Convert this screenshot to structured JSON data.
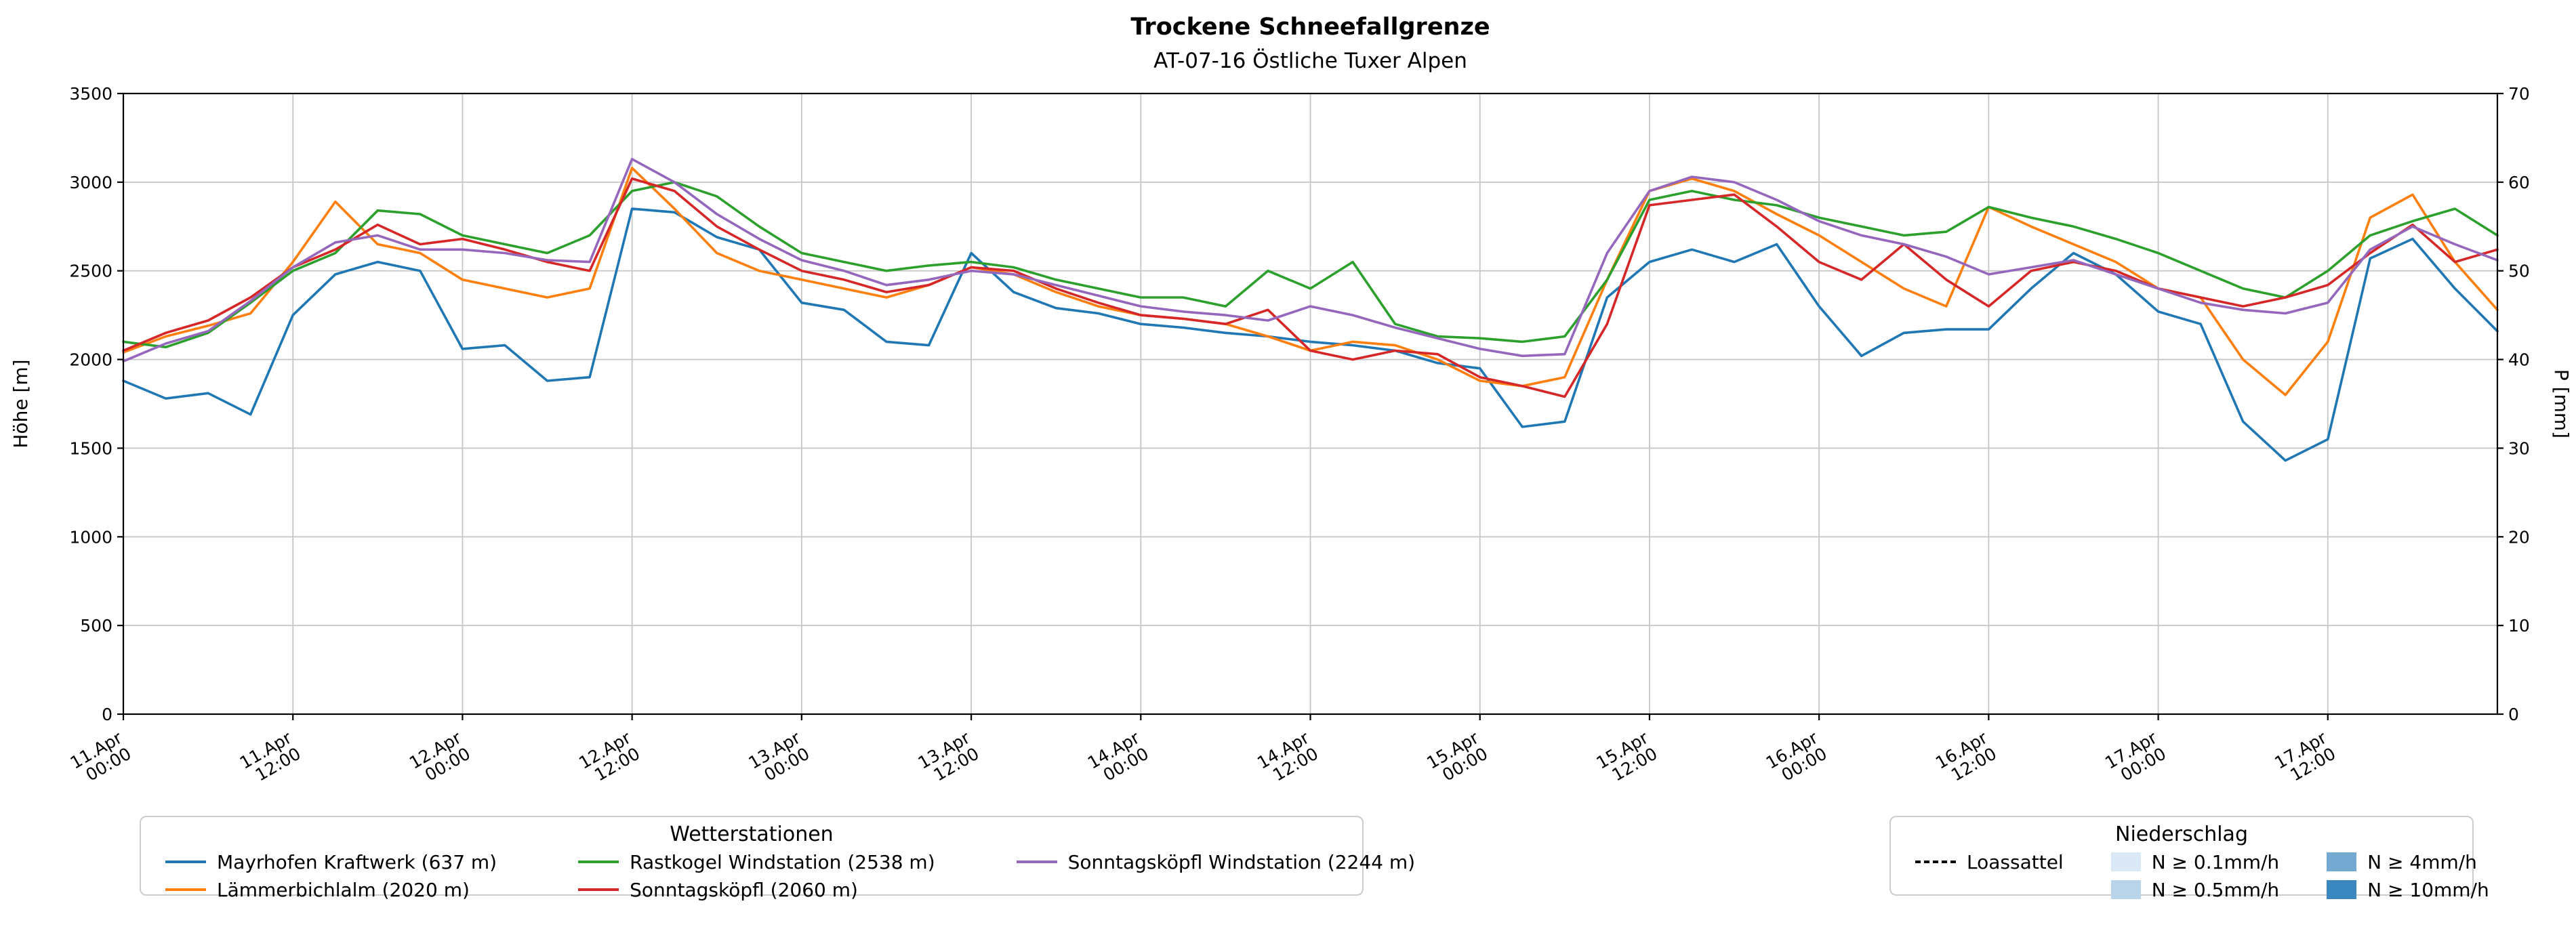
{
  "colors": {
    "grid": "#c6c6c6",
    "axis": "#000000",
    "background": "#ffffff"
  },
  "chart_data": {
    "type": "line",
    "title": "Trockene Schneefallgrenze",
    "subtitle": "AT-07-16 Östliche Tuxer Alpen",
    "ylabel_left": "Höhe [m]",
    "ylabel_right": "P [mm]",
    "ylim_left": [
      0,
      3500
    ],
    "yticks_left": [
      0,
      500,
      1000,
      1500,
      2000,
      2500,
      3000,
      3500
    ],
    "ylim_right": [
      0,
      70
    ],
    "yticks_right": [
      0,
      10,
      20,
      30,
      40,
      50,
      60,
      70
    ],
    "grid": true,
    "legend_position": "below",
    "x_unit": "hours since 11.Apr 00:00",
    "xlim": [
      0,
      168
    ],
    "x_ticks": [
      {
        "hour": 0,
        "label": [
          "11.Apr",
          "00:00"
        ]
      },
      {
        "hour": 12,
        "label": [
          "11.Apr",
          "12:00"
        ]
      },
      {
        "hour": 24,
        "label": [
          "12.Apr",
          "00:00"
        ]
      },
      {
        "hour": 36,
        "label": [
          "12.Apr",
          "12:00"
        ]
      },
      {
        "hour": 48,
        "label": [
          "13.Apr",
          "00:00"
        ]
      },
      {
        "hour": 60,
        "label": [
          "13.Apr",
          "12:00"
        ]
      },
      {
        "hour": 72,
        "label": [
          "14.Apr",
          "00:00"
        ]
      },
      {
        "hour": 84,
        "label": [
          "14.Apr",
          "12:00"
        ]
      },
      {
        "hour": 96,
        "label": [
          "15.Apr",
          "00:00"
        ]
      },
      {
        "hour": 108,
        "label": [
          "15.Apr",
          "12:00"
        ]
      },
      {
        "hour": 120,
        "label": [
          "16.Apr",
          "00:00"
        ]
      },
      {
        "hour": 132,
        "label": [
          "16.Apr",
          "12:00"
        ]
      },
      {
        "hour": 144,
        "label": [
          "17.Apr",
          "00:00"
        ]
      },
      {
        "hour": 156,
        "label": [
          "17.Apr",
          "12:00"
        ]
      }
    ],
    "x_hours": [
      0,
      3,
      6,
      9,
      12,
      15,
      18,
      21,
      24,
      27,
      30,
      33,
      36,
      39,
      42,
      45,
      48,
      51,
      54,
      57,
      60,
      63,
      66,
      69,
      72,
      75,
      78,
      81,
      84,
      87,
      90,
      93,
      96,
      99,
      102,
      105,
      108,
      111,
      114,
      117,
      120,
      123,
      126,
      129,
      132,
      135,
      138,
      141,
      144,
      147,
      150,
      153,
      156,
      159,
      162,
      165,
      168
    ],
    "series": [
      {
        "name": "Mayrhofen Kraftwerk (637 m)",
        "color": "#1f77b4",
        "values": [
          1880,
          1780,
          1810,
          1690,
          2250,
          2480,
          2550,
          2500,
          2060,
          2080,
          1880,
          1900,
          2850,
          2830,
          2690,
          2620,
          2320,
          2280,
          2100,
          2080,
          2600,
          2380,
          2290,
          2260,
          2200,
          2180,
          2150,
          2130,
          2100,
          2080,
          2050,
          1980,
          1950,
          1620,
          1650,
          2350,
          2550,
          2620,
          2550,
          2650,
          2300,
          2020,
          2150,
          2170,
          2170,
          2400,
          2600,
          2480,
          2270,
          2200,
          1650,
          1430,
          1550,
          2570,
          2680,
          2400,
          2160
        ]
      },
      {
        "name": "Lämmerbichlalm (2020 m)",
        "color": "#ff7f0e",
        "values": [
          2040,
          2130,
          2190,
          2260,
          2550,
          2890,
          2650,
          2600,
          2450,
          2400,
          2350,
          2400,
          3080,
          2850,
          2600,
          2500,
          2450,
          2400,
          2350,
          2420,
          2520,
          2480,
          2380,
          2300,
          2250,
          2230,
          2200,
          2130,
          2050,
          2100,
          2080,
          2000,
          1880,
          1850,
          1900,
          2450,
          2950,
          3020,
          2950,
          2820,
          2700,
          2550,
          2400,
          2300,
          2860,
          2750,
          2650,
          2550,
          2400,
          2350,
          2000,
          1800,
          2100,
          2800,
          2930,
          2550,
          2280
        ]
      },
      {
        "name": "Rastkogel Windstation (2538 m)",
        "color": "#2ca02c",
        "values": [
          2100,
          2070,
          2150,
          2320,
          2500,
          2600,
          2840,
          2820,
          2700,
          2650,
          2600,
          2700,
          2950,
          3000,
          2920,
          2750,
          2600,
          2550,
          2500,
          2530,
          2550,
          2520,
          2450,
          2400,
          2350,
          2350,
          2300,
          2500,
          2400,
          2550,
          2200,
          2130,
          2120,
          2100,
          2130,
          2450,
          2900,
          2950,
          2900,
          2870,
          2800,
          2750,
          2700,
          2720,
          2860,
          2800,
          2750,
          2680,
          2600,
          2500,
          2400,
          2350,
          2500,
          2700,
          2780,
          2850,
          2700
        ]
      },
      {
        "name": "Sonntagsköpfl (2060 m)",
        "color": "#d62728",
        "values": [
          2050,
          2150,
          2220,
          2350,
          2520,
          2620,
          2760,
          2650,
          2680,
          2620,
          2550,
          2500,
          3020,
          2950,
          2750,
          2620,
          2500,
          2450,
          2380,
          2420,
          2520,
          2500,
          2400,
          2320,
          2250,
          2230,
          2200,
          2280,
          2050,
          2000,
          2050,
          2030,
          1900,
          1850,
          1790,
          2200,
          2870,
          2900,
          2930,
          2750,
          2550,
          2450,
          2650,
          2450,
          2300,
          2500,
          2550,
          2500,
          2400,
          2350,
          2300,
          2350,
          2420,
          2600,
          2760,
          2550,
          2620
        ]
      },
      {
        "name": "Sonntagsköpfl Windstation (2244 m)",
        "color": "#9467bd",
        "values": [
          1990,
          2090,
          2160,
          2330,
          2520,
          2660,
          2700,
          2620,
          2620,
          2600,
          2560,
          2550,
          3130,
          3000,
          2820,
          2680,
          2560,
          2500,
          2420,
          2450,
          2500,
          2480,
          2420,
          2360,
          2300,
          2270,
          2250,
          2220,
          2300,
          2250,
          2180,
          2120,
          2060,
          2020,
          2030,
          2600,
          2950,
          3030,
          3000,
          2900,
          2780,
          2700,
          2650,
          2580,
          2480,
          2520,
          2560,
          2480,
          2400,
          2320,
          2280,
          2260,
          2320,
          2620,
          2750,
          2650,
          2560
        ]
      }
    ]
  },
  "legend_stations": {
    "title": "Wetterstationen"
  },
  "legend_precip": {
    "title": "Niederschlag",
    "line_item": {
      "label": "Loassattel",
      "color": "#000000",
      "style": "dashed"
    },
    "patch_items": [
      {
        "label": "N ≥ 0.1mm/h",
        "color": "#dbe9f6"
      },
      {
        "label": "N ≥ 0.5mm/h",
        "color": "#b7d4ea"
      },
      {
        "label": "N ≥ 4mm/h",
        "color": "#74aad2"
      },
      {
        "label": "N ≥ 10mm/h",
        "color": "#3a87c1"
      }
    ]
  }
}
